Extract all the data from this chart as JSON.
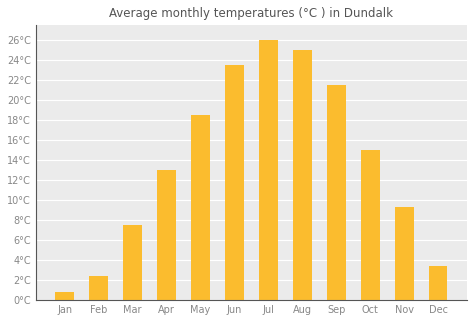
{
  "months": [
    "Jan",
    "Feb",
    "Mar",
    "Apr",
    "May",
    "Jun",
    "Jul",
    "Aug",
    "Sep",
    "Oct",
    "Nov",
    "Dec"
  ],
  "values": [
    0.8,
    2.4,
    7.5,
    13.0,
    18.5,
    23.5,
    26.0,
    25.0,
    21.5,
    15.0,
    9.3,
    3.4
  ],
  "bar_color": "#FBBC2E",
  "title": "Average monthly temperatures (°C ) in Dundalk",
  "ylim": [
    0,
    27.5
  ],
  "yticks": [
    0,
    2,
    4,
    6,
    8,
    10,
    12,
    14,
    16,
    18,
    20,
    22,
    24,
    26
  ],
  "ytick_labels": [
    "0°C",
    "2°C",
    "4°C",
    "6°C",
    "8°C",
    "10°C",
    "12°C",
    "14°C",
    "16°C",
    "18°C",
    "20°C",
    "22°C",
    "24°C",
    "26°C"
  ],
  "fig_bg_color": "#ffffff",
  "plot_bg_color": "#ebebeb",
  "grid_color": "#ffffff",
  "title_fontsize": 8.5,
  "tick_fontsize": 7,
  "title_color": "#555555",
  "tick_color": "#888888",
  "spine_color": "#555555",
  "bar_width": 0.55
}
